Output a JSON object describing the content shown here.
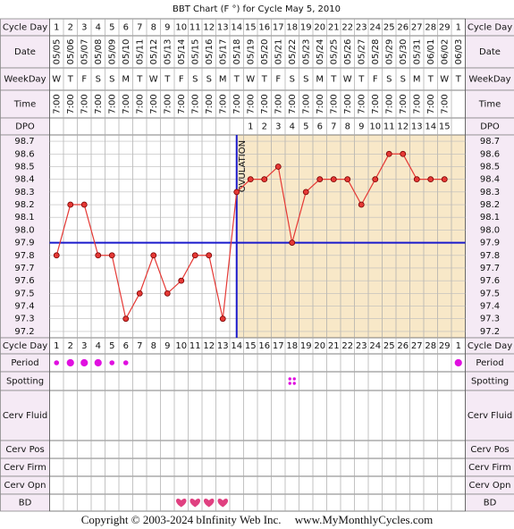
{
  "chart_data": {
    "type": "line",
    "title": "BBT Chart (F °) for Cycle May 5, 2010",
    "row_labels": {
      "cycle_day": "Cycle Day",
      "date": "Date",
      "weekday": "WeekDay",
      "time": "Time",
      "dpo": "DPO",
      "period": "Period",
      "spotting": "Spotting",
      "cerv_fluid": "Cerv Fluid",
      "cerv_pos": "Cerv Pos",
      "cerv_firm": "Cerv Firm",
      "cerv_opn": "Cerv Opn",
      "bd": "BD"
    },
    "categories": [
      1,
      2,
      3,
      4,
      5,
      6,
      7,
      8,
      9,
      10,
      11,
      12,
      13,
      14,
      15,
      16,
      17,
      18,
      19,
      20,
      21,
      22,
      23,
      24,
      25,
      26,
      27,
      28,
      29,
      1
    ],
    "dates": [
      "05/05",
      "05/06",
      "05/07",
      "05/08",
      "05/09",
      "05/10",
      "05/11",
      "05/12",
      "05/13",
      "05/14",
      "05/15",
      "05/16",
      "05/17",
      "05/18",
      "05/19",
      "05/20",
      "05/21",
      "05/22",
      "05/23",
      "05/24",
      "05/25",
      "05/26",
      "05/27",
      "05/28",
      "05/29",
      "05/30",
      "05/31",
      "06/01",
      "06/02",
      "06/03"
    ],
    "weekdays": [
      "W",
      "T",
      "F",
      "S",
      "S",
      "M",
      "T",
      "W",
      "T",
      "F",
      "S",
      "S",
      "M",
      "T",
      "W",
      "T",
      "F",
      "S",
      "S",
      "M",
      "T",
      "W",
      "T",
      "F",
      "S",
      "S",
      "M",
      "T",
      "W",
      "T"
    ],
    "times": [
      "7:00",
      "7:00",
      "7:00",
      "7:00",
      "7:00",
      "7:00",
      "7:00",
      "7:00",
      "7:00",
      "7:00",
      "7:00",
      "7:00",
      "7:00",
      "7:00",
      "7:00",
      "7:00",
      "7:00",
      "7:00",
      "7:00",
      "7:00",
      "7:00",
      "7:00",
      "7:00",
      "7:00",
      "7:00",
      "7:00",
      "7:00",
      "7:00",
      "7:00",
      null
    ],
    "dpo": [
      null,
      null,
      null,
      null,
      null,
      null,
      null,
      null,
      null,
      null,
      null,
      null,
      null,
      null,
      1,
      2,
      3,
      4,
      5,
      6,
      7,
      8,
      9,
      10,
      11,
      12,
      13,
      14,
      15,
      null
    ],
    "series": [
      {
        "name": "BBT",
        "color": "#e53935",
        "values": [
          97.8,
          98.2,
          98.2,
          97.8,
          97.8,
          97.3,
          97.5,
          97.8,
          97.5,
          97.6,
          97.8,
          97.8,
          97.3,
          98.3,
          98.4,
          98.4,
          98.5,
          97.9,
          98.3,
          98.4,
          98.4,
          98.4,
          98.2,
          98.4,
          98.6,
          98.6,
          98.4,
          98.4,
          98.4,
          null
        ]
      }
    ],
    "ylim": [
      97.15,
      98.75
    ],
    "yticks": [
      97.2,
      97.3,
      97.4,
      97.5,
      97.6,
      97.7,
      97.8,
      97.9,
      {
        "value": 98.0,
        "label": "98.0"
      },
      98.1,
      98.2,
      98.3,
      98.4,
      98.5,
      98.6,
      98.7
    ],
    "grid": true,
    "coverline": 97.9,
    "coverline_color": "#1a1acc",
    "ovulation_day": 14,
    "ovulation_label": "OVULATION",
    "period": [
      1,
      2,
      2,
      2,
      1,
      1,
      null,
      null,
      null,
      null,
      null,
      null,
      null,
      null,
      null,
      null,
      null,
      null,
      null,
      null,
      null,
      null,
      null,
      null,
      null,
      null,
      null,
      null,
      null,
      2
    ],
    "spotting": [
      null,
      null,
      null,
      null,
      null,
      null,
      null,
      null,
      null,
      null,
      null,
      null,
      null,
      null,
      null,
      null,
      null,
      1,
      null,
      null,
      null,
      null,
      null,
      null,
      null,
      null,
      null,
      null,
      null,
      null
    ],
    "bd": [
      null,
      null,
      null,
      null,
      null,
      null,
      null,
      null,
      null,
      1,
      1,
      1,
      1,
      null,
      null,
      null,
      null,
      null,
      null,
      null,
      null,
      null,
      null,
      null,
      null,
      null,
      null,
      null,
      null,
      null
    ]
  },
  "footer": {
    "copyright": "Copyright © 2003-2024 bInfinity Web Inc.",
    "site": "www.MyMonthlyCycles.com"
  }
}
